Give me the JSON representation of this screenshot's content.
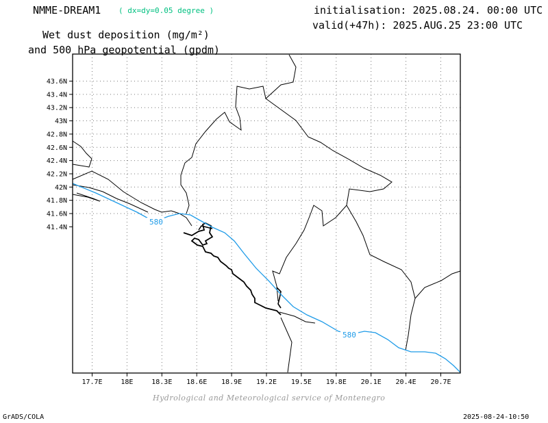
{
  "header": {
    "model": "NMME-DREAM1",
    "resolution": "( dx=dy=0.05 degree )",
    "variable_line1": "Wet dust deposition (mg/m²)",
    "variable_line2": "and 500 hPa geopotential (gpdm)",
    "init": "initialisation: 2025.08.24. 00:00 UTC",
    "valid": "valid(+47h): 2025.AUG.25 23:00 UTC"
  },
  "map": {
    "y_ticks": [
      "43.6N",
      "43.4N",
      "43.2N",
      "43N",
      "42.8N",
      "42.6N",
      "42.4N",
      "42.2N",
      "42N",
      "41.8N",
      "41.6N",
      "41.4N"
    ],
    "x_ticks": [
      "17.7E",
      "18E",
      "18.3E",
      "18.6E",
      "18.9E",
      "19.2E",
      "19.5E",
      "19.8E",
      "20.1E",
      "20.4E",
      "20.7E"
    ],
    "contour_label_1": "580",
    "contour_label_2": "580",
    "contour_color": "#1e9be8"
  },
  "footer": {
    "credit": "Hydrological and Meteorological service of Montenegro",
    "left": "GrADS/COLA",
    "right": "2025-08-24-10:50"
  }
}
